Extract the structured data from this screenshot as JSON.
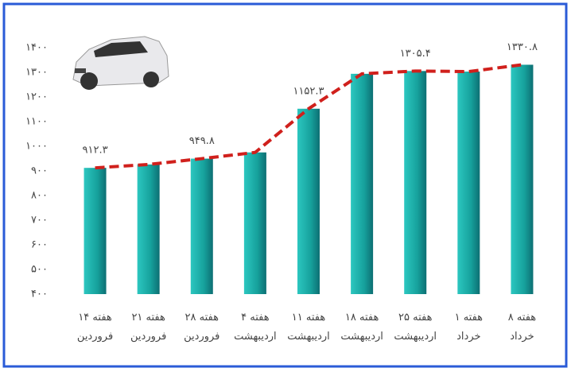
{
  "chart_data": {
    "type": "bar",
    "categories": [
      "هفته ۱۴ فروردین",
      "هفته ۲۱ فروردین",
      "هفته ۲۸ فروردین",
      "هفته ۴ اردیبهشت",
      "هفته ۱۱ اردیبهشت",
      "هفته ۱۸ اردیبهشت",
      "هفته ۲۵ اردیبهشت",
      "هفته ۱ خرداد",
      "هفته ۸ خرداد"
    ],
    "values": [
      912.3,
      926,
      949.8,
      975,
      1152.3,
      1294,
      1305.4,
      1303,
      1330.8
    ],
    "value_labels": [
      "۹۱۲.۳",
      null,
      "۹۴۹.۸",
      null,
      "۱۱۵۲.۳",
      null,
      "۱۳۰۵.۴",
      null,
      "۱۳۳۰.۸"
    ],
    "color": "#1aa39f",
    "line_color": "#d0201c",
    "ylim": [
      400,
      1400
    ],
    "yticks": [
      {
        "value": 400,
        "label": "۴۰۰"
      },
      {
        "value": 500,
        "label": "۵۰۰"
      },
      {
        "value": 600,
        "label": "۶۰۰"
      },
      {
        "value": 700,
        "label": "۷۰۰"
      },
      {
        "value": 800,
        "label": "۸۰۰"
      },
      {
        "value": 900,
        "label": "۹۰۰"
      },
      {
        "value": 1000,
        "label": "۱۰۰۰"
      },
      {
        "value": 1100,
        "label": "۱۱۰۰"
      },
      {
        "value": 1200,
        "label": "۱۲۰۰"
      },
      {
        "value": 1300,
        "label": "۱۳۰۰"
      },
      {
        "value": 1400,
        "label": "۱۴۰۰"
      }
    ],
    "grid": false
  }
}
